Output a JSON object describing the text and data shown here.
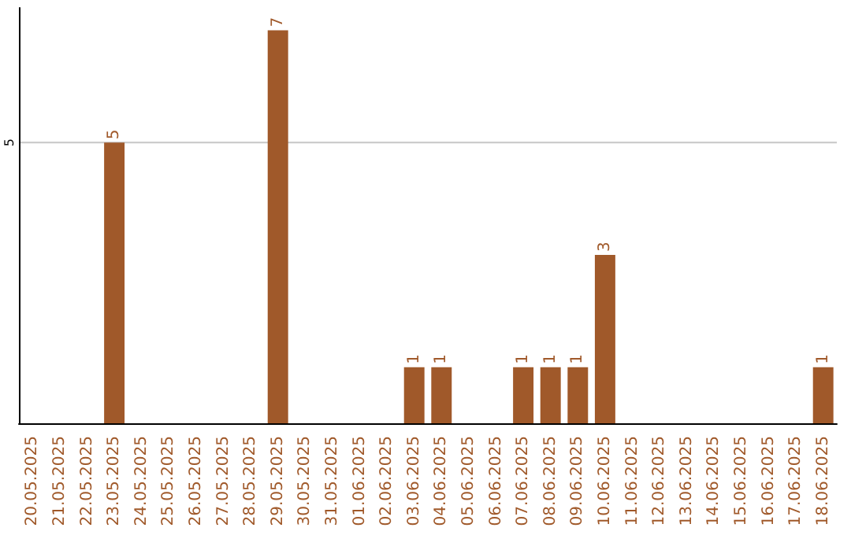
{
  "chart_data": {
    "type": "bar",
    "categories": [
      "20.05.2025",
      "21.05.2025",
      "22.05.2025",
      "23.05.2025",
      "24.05.2025",
      "25.05.2025",
      "26.05.2025",
      "27.05.2025",
      "28.05.2025",
      "29.05.2025",
      "30.05.2025",
      "31.05.2025",
      "01.06.2025",
      "02.06.2025",
      "03.06.2025",
      "04.06.2025",
      "05.06.2025",
      "06.06.2025",
      "07.06.2025",
      "08.06.2025",
      "09.06.2025",
      "10.06.2025",
      "11.06.2025",
      "12.06.2025",
      "13.06.2025",
      "14.06.2025",
      "15.06.2025",
      "16.06.2025",
      "17.06.2025",
      "18.06.2025"
    ],
    "values": [
      0,
      0,
      0,
      5,
      0,
      0,
      0,
      0,
      0,
      7,
      0,
      0,
      0,
      0,
      1,
      1,
      0,
      0,
      1,
      1,
      1,
      3,
      0,
      0,
      0,
      0,
      0,
      0,
      0,
      1
    ],
    "value_labels": [
      null,
      null,
      null,
      "5",
      null,
      null,
      null,
      null,
      null,
      "7",
      null,
      null,
      null,
      null,
      "1",
      "1",
      null,
      null,
      "1",
      "1",
      "1",
      "3",
      null,
      null,
      null,
      null,
      null,
      null,
      null,
      "1"
    ],
    "color": "#a0592a",
    "ylim": [
      0,
      7.4
    ],
    "yticks": [
      5
    ],
    "grid": "y"
  }
}
